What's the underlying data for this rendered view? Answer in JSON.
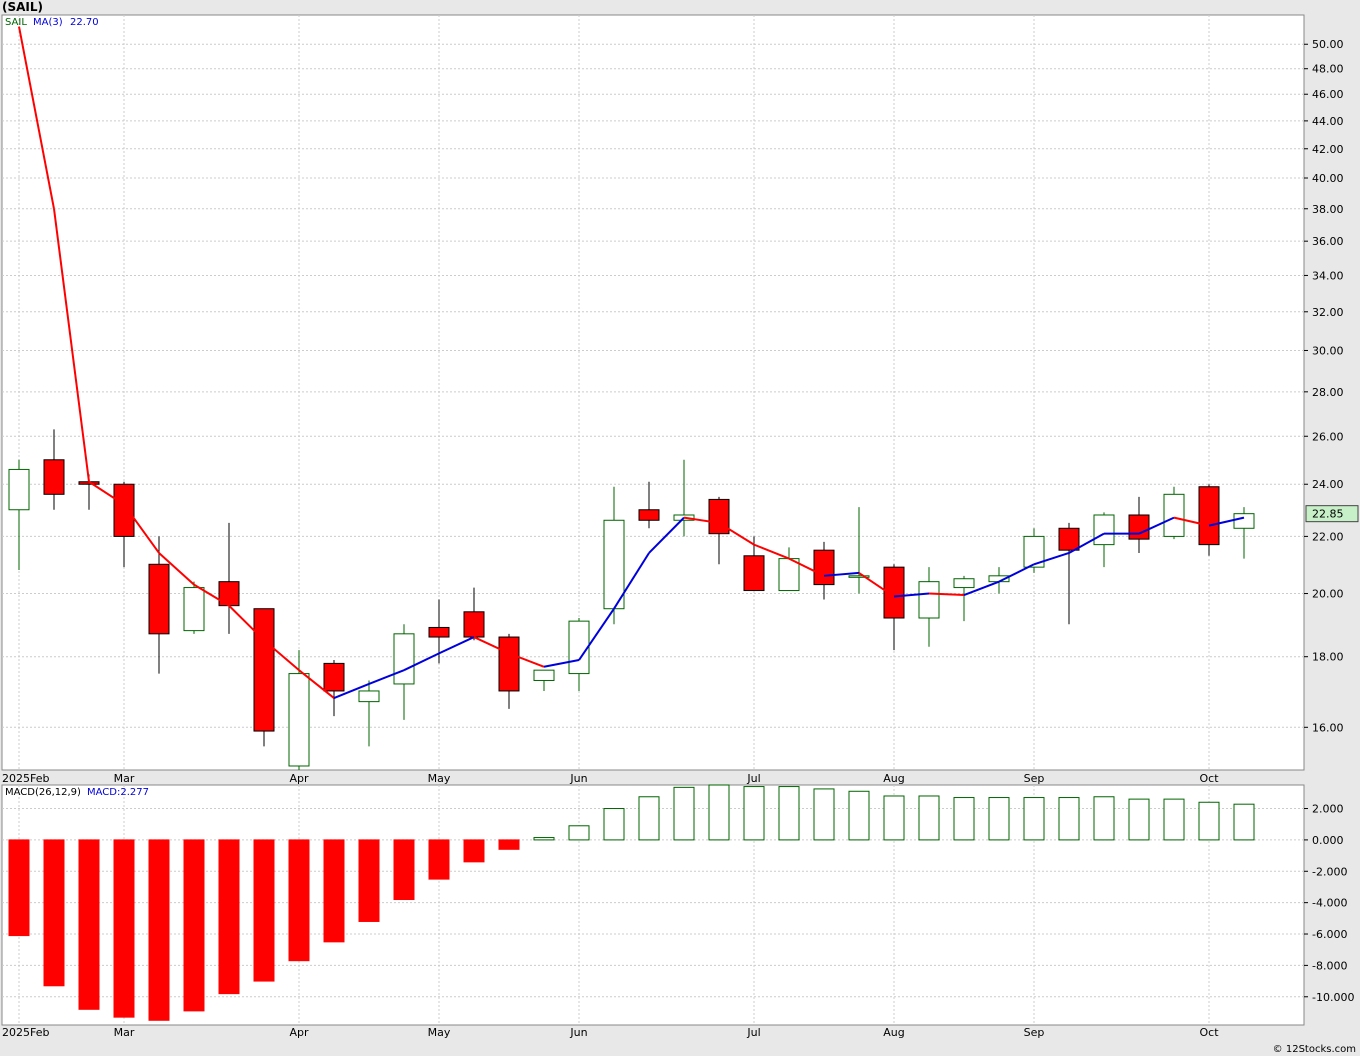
{
  "title": "(SAIL)",
  "credit": "© 12Stocks.com",
  "colors": {
    "up": "#006400",
    "down": "#ff0000",
    "ma_up": "#0000dd",
    "ma_down": "#ff0000",
    "grid": "#cccccc",
    "last_price_bg": "#c8f0c8"
  },
  "chart_data": [
    {
      "type": "candlestick",
      "ticker": "SAIL",
      "ma_label": "MA(3)",
      "ma_value": "22.70",
      "last_price": "22.85",
      "y_scale": "log",
      "ylim": [
        14.9,
        52.5
      ],
      "y_ticks": [
        "16.00",
        "18.00",
        "20.00",
        "22.00",
        "24.00",
        "26.00",
        "28.00",
        "30.00",
        "32.00",
        "34.00",
        "36.00",
        "38.00",
        "40.00",
        "42.00",
        "44.00",
        "46.00",
        "48.00",
        "50.00"
      ],
      "month_labels": [
        {
          "label": "2025Feb",
          "week": 0
        },
        {
          "label": "Mar",
          "week": 3
        },
        {
          "label": "Apr",
          "week": 8
        },
        {
          "label": "May",
          "week": 12
        },
        {
          "label": "Jun",
          "week": 16
        },
        {
          "label": "Jul",
          "week": 21
        },
        {
          "label": "Aug",
          "week": 25
        },
        {
          "label": "Sep",
          "week": 29
        },
        {
          "label": "Oct",
          "week": 34
        }
      ],
      "candles": [
        {
          "o": 23.0,
          "h": 25.0,
          "l": 20.8,
          "c": 24.6
        },
        {
          "o": 25.0,
          "h": 26.3,
          "l": 23.0,
          "c": 23.6
        },
        {
          "o": 24.1,
          "h": 24.4,
          "l": 23.0,
          "c": 24.0
        },
        {
          "o": 24.0,
          "h": 24.1,
          "l": 20.9,
          "c": 22.0
        },
        {
          "o": 21.0,
          "h": 22.0,
          "l": 17.5,
          "c": 18.7
        },
        {
          "o": 18.8,
          "h": 20.4,
          "l": 18.7,
          "c": 20.2
        },
        {
          "o": 20.4,
          "h": 22.5,
          "l": 18.7,
          "c": 19.6
        },
        {
          "o": 19.5,
          "h": 19.5,
          "l": 15.5,
          "c": 15.9
        },
        {
          "o": 15.0,
          "h": 18.2,
          "l": 14.9,
          "c": 17.5
        },
        {
          "o": 17.8,
          "h": 17.9,
          "l": 16.3,
          "c": 17.0
        },
        {
          "o": 16.7,
          "h": 17.3,
          "l": 15.5,
          "c": 17.0
        },
        {
          "o": 17.2,
          "h": 19.0,
          "l": 16.2,
          "c": 18.7
        },
        {
          "o": 18.9,
          "h": 19.8,
          "l": 17.8,
          "c": 18.6
        },
        {
          "o": 19.4,
          "h": 20.2,
          "l": 18.5,
          "c": 18.6
        },
        {
          "o": 18.6,
          "h": 18.7,
          "l": 16.5,
          "c": 17.0
        },
        {
          "o": 17.3,
          "h": 17.6,
          "l": 17.0,
          "c": 17.6
        },
        {
          "o": 17.5,
          "h": 19.2,
          "l": 17.0,
          "c": 19.1
        },
        {
          "o": 19.5,
          "h": 23.9,
          "l": 19.0,
          "c": 22.6
        },
        {
          "o": 23.0,
          "h": 24.1,
          "l": 22.3,
          "c": 22.6
        },
        {
          "o": 22.6,
          "h": 25.0,
          "l": 22.0,
          "c": 22.8
        },
        {
          "o": 23.4,
          "h": 23.5,
          "l": 21.0,
          "c": 22.1
        },
        {
          "o": 21.3,
          "h": 22.0,
          "l": 20.1,
          "c": 20.1
        },
        {
          "o": 20.1,
          "h": 21.6,
          "l": 20.1,
          "c": 21.2
        },
        {
          "o": 21.5,
          "h": 21.8,
          "l": 19.8,
          "c": 20.3
        },
        {
          "o": 20.6,
          "h": 23.1,
          "l": 20.0,
          "c": 20.6
        },
        {
          "o": 20.9,
          "h": 21.0,
          "l": 18.2,
          "c": 19.2
        },
        {
          "o": 19.2,
          "h": 20.9,
          "l": 18.3,
          "c": 20.4
        },
        {
          "o": 20.2,
          "h": 20.6,
          "l": 19.1,
          "c": 20.5
        },
        {
          "o": 20.4,
          "h": 20.9,
          "l": 20.0,
          "c": 20.6
        },
        {
          "o": 20.9,
          "h": 22.3,
          "l": 20.7,
          "c": 22.0
        },
        {
          "o": 22.3,
          "h": 22.5,
          "l": 19.0,
          "c": 21.5
        },
        {
          "o": 21.7,
          "h": 22.9,
          "l": 20.9,
          "c": 22.8
        },
        {
          "o": 22.8,
          "h": 23.5,
          "l": 21.4,
          "c": 21.9
        },
        {
          "o": 22.0,
          "h": 23.9,
          "l": 21.9,
          "c": 23.6
        },
        {
          "o": 23.9,
          "h": 24.0,
          "l": 21.3,
          "c": 21.7
        },
        {
          "o": 22.3,
          "h": 23.1,
          "l": 21.2,
          "c": 22.85
        }
      ],
      "ma": [
        51.5,
        38.0,
        24.1,
        23.2,
        21.4,
        20.3,
        19.6,
        18.5,
        17.6,
        16.8,
        17.2,
        17.6,
        18.1,
        18.6,
        18.1,
        17.7,
        17.9,
        19.5,
        21.4,
        22.7,
        22.5,
        21.7,
        21.2,
        20.6,
        20.7,
        19.9,
        20.0,
        19.95,
        20.4,
        21.0,
        21.4,
        22.1,
        22.1,
        22.7,
        22.4,
        22.7
      ]
    },
    {
      "type": "bar",
      "label": "MACD(26,12,9)",
      "value_label": "MACD:2.277",
      "ylim": [
        -11.8,
        3.5
      ],
      "y_ticks": [
        "-10.000",
        "-8.000",
        "-6.000",
        "-4.000",
        "-2.000",
        "0.000",
        "2.000"
      ],
      "values": [
        -6.1,
        -9.3,
        -10.8,
        -11.3,
        -11.5,
        -10.9,
        -9.8,
        -9.0,
        -7.7,
        -6.5,
        -5.2,
        -3.8,
        -2.5,
        -1.4,
        -0.6,
        0.15,
        0.9,
        2.0,
        2.75,
        3.35,
        3.5,
        3.4,
        3.4,
        3.25,
        3.1,
        2.8,
        2.8,
        2.7,
        2.7,
        2.7,
        2.7,
        2.75,
        2.6,
        2.6,
        2.4,
        2.277
      ]
    }
  ]
}
